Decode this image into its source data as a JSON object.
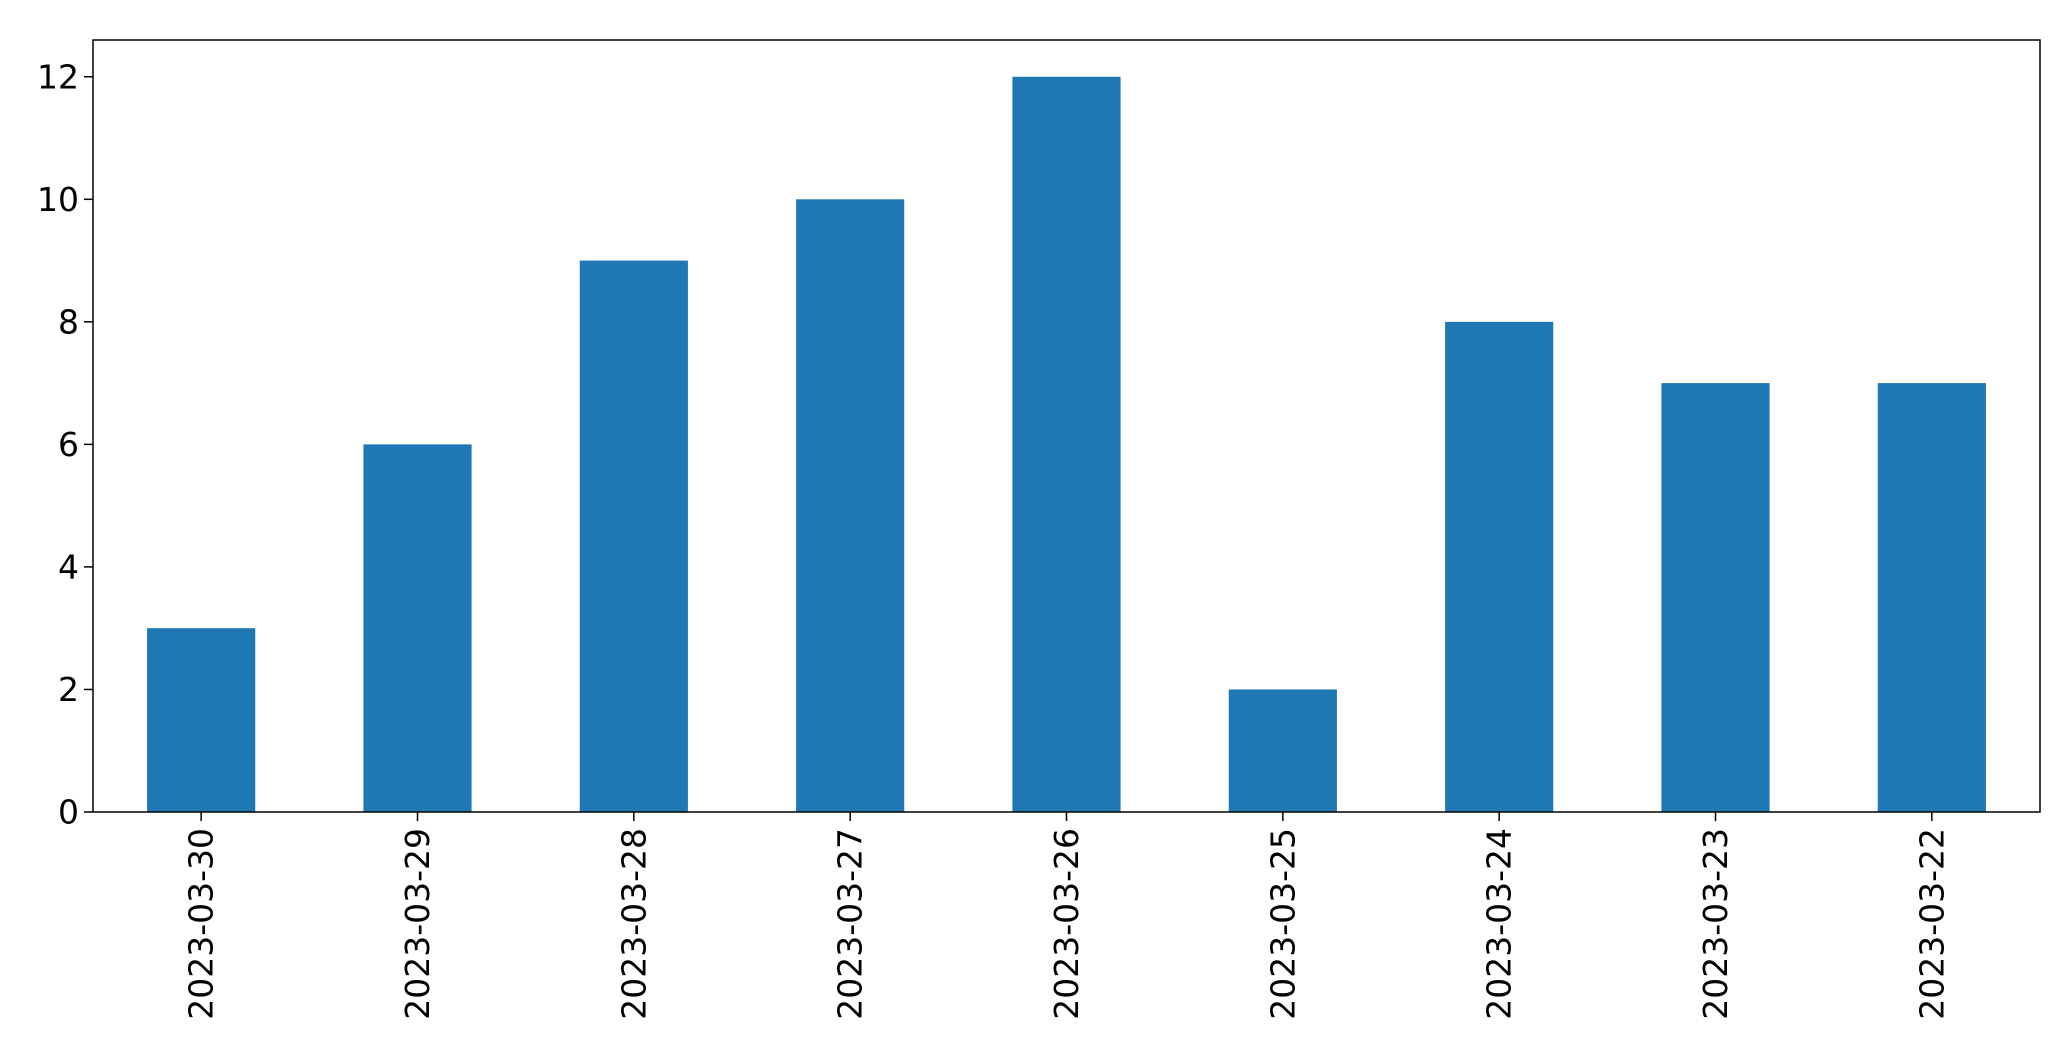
{
  "chart_data": {
    "type": "bar",
    "title": "",
    "xlabel": "",
    "ylabel": "",
    "categories": [
      "2023-03-30",
      "2023-03-29",
      "2023-03-28",
      "2023-03-27",
      "2023-03-26",
      "2023-03-25",
      "2023-03-24",
      "2023-03-23",
      "2023-03-22"
    ],
    "values": [
      3,
      6,
      9,
      10,
      12,
      2,
      8,
      7,
      7
    ],
    "ylim": [
      0,
      12.6
    ],
    "yticks": [
      0,
      2,
      4,
      6,
      8,
      10,
      12
    ],
    "bar_color": "#1f77b4",
    "grid": false,
    "legend": "none"
  }
}
